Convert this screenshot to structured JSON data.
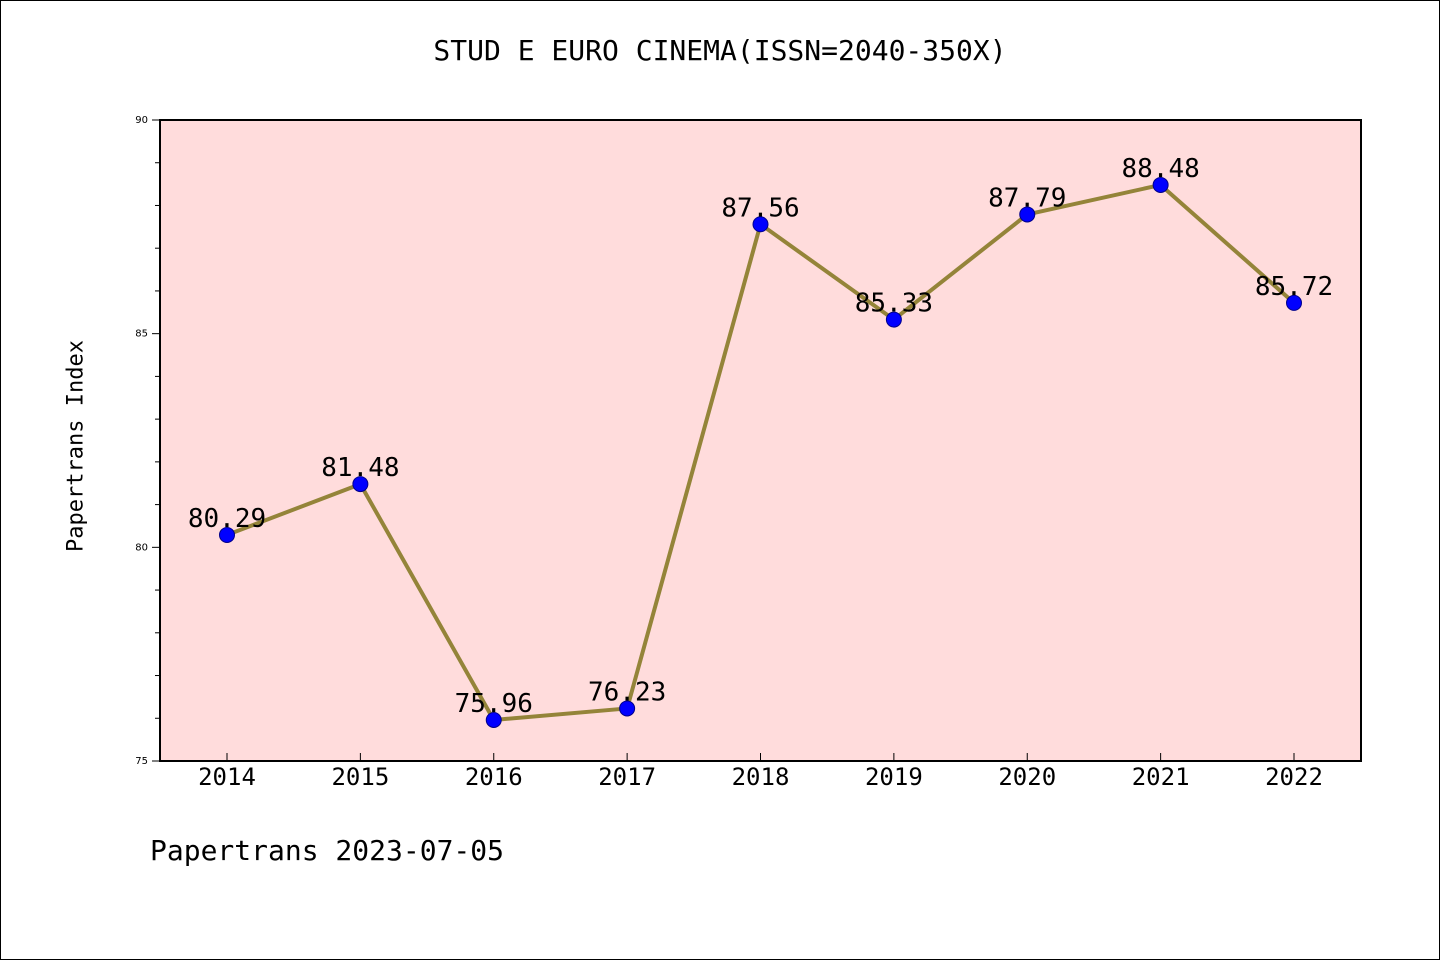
{
  "chart_data": {
    "type": "line",
    "title": "STUD E EURO CINEMA(ISSN=2040-350X)",
    "xlabel": "",
    "ylabel": "Papertrans Index",
    "footer": "Papertrans 2023-07-05",
    "categories": [
      "2014",
      "2015",
      "2016",
      "2017",
      "2018",
      "2019",
      "2020",
      "2021",
      "2022"
    ],
    "series": [
      {
        "values": [
          80.29,
          81.48,
          75.96,
          76.23,
          87.56,
          85.33,
          87.79,
          88.48,
          85.72
        ],
        "labels": [
          "80.29",
          "81.48",
          "75.96",
          "76.23",
          "87.56",
          "85.33",
          "87.79",
          "88.48",
          "85.72"
        ]
      }
    ],
    "ylim": [
      75,
      90
    ],
    "yticks": [
      "75",
      "80",
      "85",
      "90"
    ],
    "grid": false,
    "colors": {
      "plot_background": "#ffdcdc",
      "line": "#948439",
      "marker": "#0000ff"
    }
  }
}
